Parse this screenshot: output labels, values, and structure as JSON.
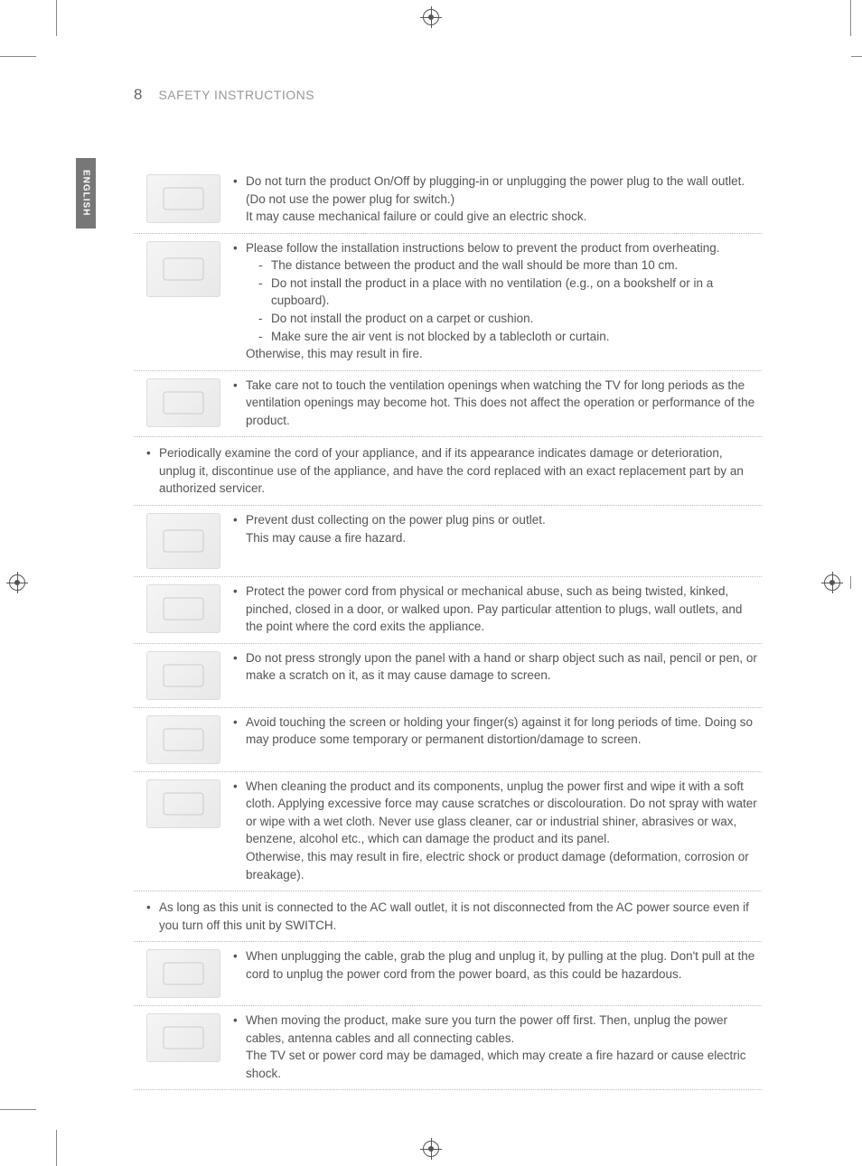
{
  "page_number": "8",
  "page_title": "SAFETY INSTRUCTIONS",
  "lang_tab": "ENGLISH",
  "colors": {
    "text": "#555555",
    "muted": "#999999",
    "rule": "#bbbbbb",
    "tab_bg": "#777777",
    "tab_fg": "#ffffff",
    "page_bg": "#ffffff"
  },
  "typography": {
    "body_fontsize_pt": 10,
    "pagenum_fontsize_pt": 13,
    "title_fontsize_pt": 10.5,
    "tab_fontsize_pt": 8,
    "line_height": 1.45
  },
  "items": [
    {
      "icon": "plug-no-switch",
      "lines": [
        "Do not turn the product On/Off by plugging-in or unplugging the power plug to the wall outlet. (Do not use the power plug for switch.)",
        "It may cause mechanical failure or could give an electric shock."
      ]
    },
    {
      "icon": "ventilation-distance",
      "lines": [
        "Please follow the installation instructions below to prevent the product from overheating."
      ],
      "sublines": [
        "The distance between the product and the wall should be more than 10 cm.",
        "Do not install the product in a place with no ventilation (e.g., on a bookshelf or in a cupboard).",
        "Do not install the product on a carpet or cushion.",
        "Make sure the air vent is not blocked by a tablecloth or curtain."
      ],
      "tail": "Otherwise, this may result in fire."
    },
    {
      "icon": "no-touch-vent",
      "lines": [
        "Take care not to touch the ventilation openings when watching the TV for long periods as the ventilation openings may become hot. This does not affect the operation or performance of the product."
      ]
    },
    {
      "full": true,
      "lines": [
        "Periodically examine the cord of your appliance, and if its appearance indicates damage or deterioration, unplug it, discontinue use of the appliance, and have the cord replaced with an exact replacement part by an authorized servicer."
      ]
    },
    {
      "icon": "dust-plug",
      "lines": [
        "Prevent dust collecting on the power plug pins or outlet.",
        "This may cause a fire hazard."
      ]
    },
    {
      "icon": "cord-protect",
      "lines": [
        "Protect the power cord from physical or mechanical abuse, such as being twisted, kinked, pinched, closed in a door, or walked upon. Pay particular attention to plugs, wall outlets, and the point where the cord exits the appliance."
      ]
    },
    {
      "icon": "no-press-panel",
      "lines": [
        "Do not press strongly upon the panel with a hand or sharp object such as nail, pencil or pen, or make a scratch on it, as it may cause damage to screen."
      ]
    },
    {
      "icon": "no-touch-screen",
      "lines": [
        "Avoid touching the screen or holding your finger(s) against it for long periods of time. Doing so may produce some temporary or permanent distortion/damage to screen."
      ]
    },
    {
      "icon": "cleaning",
      "lines": [
        "When cleaning the product and its components, unplug the power first and wipe it with a soft cloth. Applying excessive force may cause scratches or discolouration. Do not spray with water or wipe with a wet cloth. Never use glass cleaner, car or industrial shiner, abrasives or wax, benzene, alcohol etc., which can damage the product and its panel.",
        "Otherwise, this may result in fire, electric shock or product damage (deformation, corrosion or breakage)."
      ]
    },
    {
      "full": true,
      "lines": [
        "As long as this unit is connected to the AC wall outlet, it is not disconnected from the AC power source even if you turn off this unit by SWITCH."
      ]
    },
    {
      "icon": "unplug-grab",
      "lines": [
        "When unplugging the cable, grab the plug and unplug it, by pulling at the plug. Don't pull at the cord to unplug the power cord from the power board, as this could be hazardous."
      ]
    },
    {
      "icon": "moving-product",
      "lines": [
        "When moving the product, make sure you turn the power off first. Then, unplug the power cables, antenna cables and all connecting cables.",
        "The TV set or power cord may be damaged, which may create a fire hazard or cause electric shock."
      ]
    }
  ]
}
